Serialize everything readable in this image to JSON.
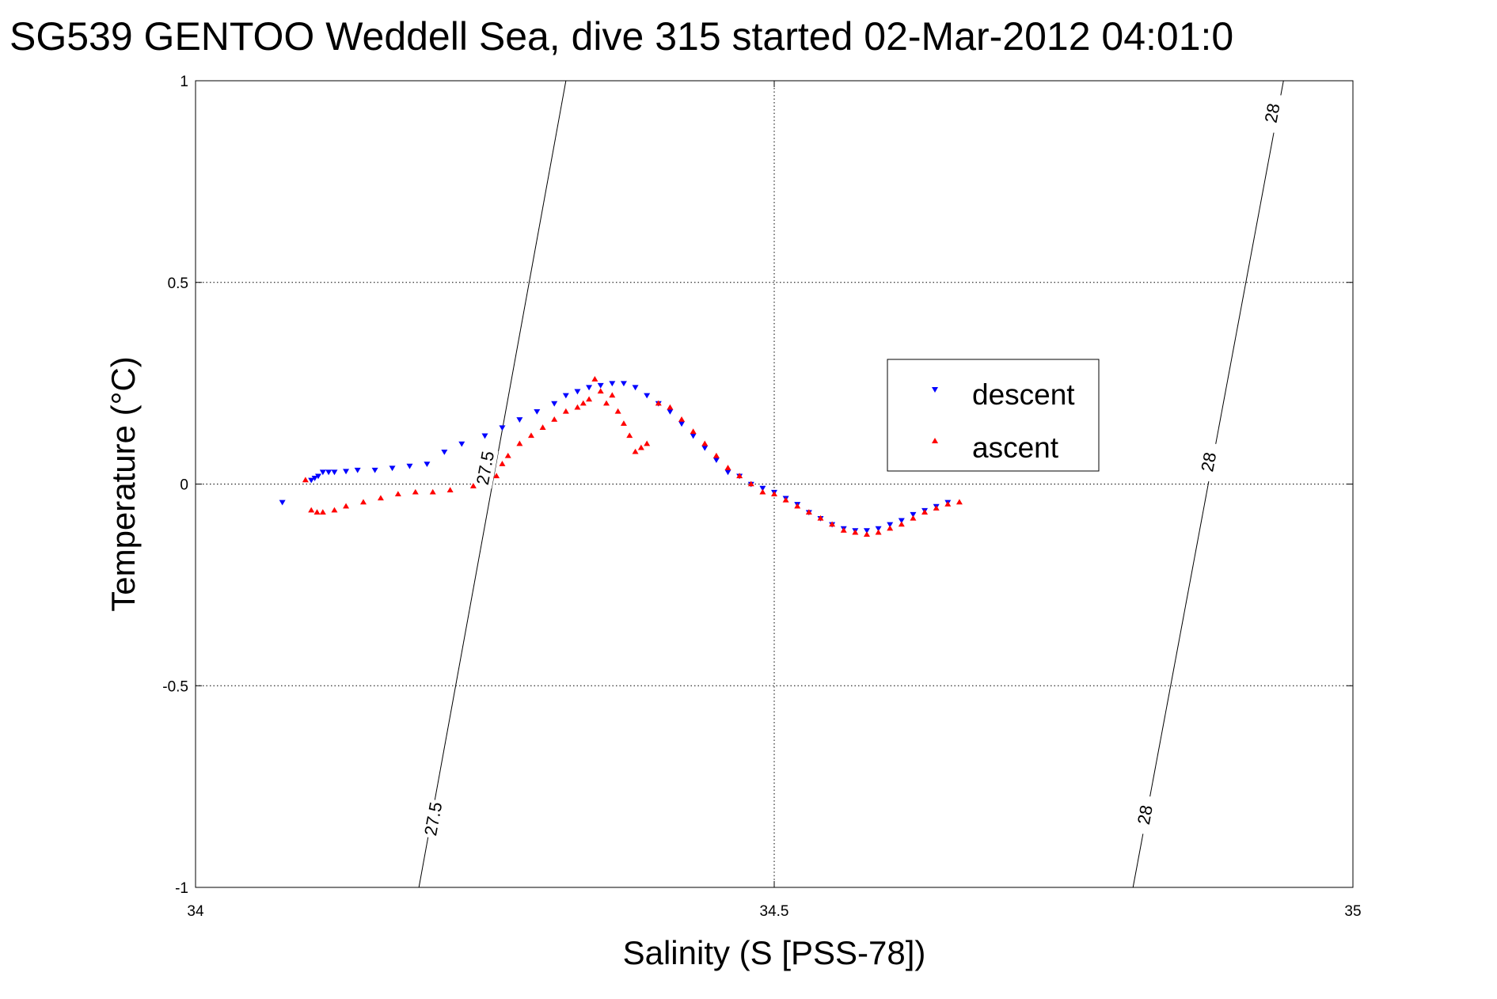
{
  "chart_data": {
    "type": "scatter",
    "title": "SG539 GENTOO Weddell Sea, dive 315 started 02-Mar-2012 04:01:0",
    "xlabel": "Salinity (S [PSS-78])",
    "ylabel": "Temperature (°C)",
    "xlim": [
      34,
      35
    ],
    "ylim": [
      -1,
      1
    ],
    "x_ticks": [
      "34",
      "34.5",
      "35"
    ],
    "y_ticks": [
      "1",
      "0.5",
      "0",
      "-0.5",
      "-1"
    ],
    "grid": true,
    "legend_position": "upper-middle-right",
    "colors": {
      "descent": "#0000ff",
      "ascent": "#ff0000",
      "contour": "#000000"
    },
    "contours": [
      {
        "level": "27.5",
        "points": [
          [
            34.193,
            -1.0
          ],
          [
            34.32,
            1.0
          ]
        ],
        "labels": [
          {
            "text": "27.5",
            "x": 34.205,
            "y": -0.83
          },
          {
            "text": "27.5",
            "x": 34.25,
            "y": 0.04
          }
        ]
      },
      {
        "level": "28",
        "points": [
          [
            34.81,
            -1.0
          ],
          [
            34.94,
            1.0
          ]
        ],
        "labels": [
          {
            "text": "28",
            "x": 34.82,
            "y": -0.82
          },
          {
            "text": "28",
            "x": 34.875,
            "y": 0.055
          },
          {
            "text": "28",
            "x": 34.93,
            "y": 0.92
          }
        ]
      }
    ],
    "series": [
      {
        "name": "descent",
        "marker": "triangle-down",
        "x": [
          34.075,
          34.1,
          34.103,
          34.106,
          34.11,
          34.115,
          34.12,
          34.13,
          34.14,
          34.155,
          34.17,
          34.185,
          34.2,
          34.215,
          34.23,
          34.25,
          34.265,
          34.28,
          34.295,
          34.31,
          34.32,
          34.33,
          34.34,
          34.35,
          34.36,
          34.37,
          34.38,
          34.39,
          34.4,
          34.41,
          34.42,
          34.43,
          34.44,
          34.45,
          34.46,
          34.47,
          34.48,
          34.49,
          34.5,
          34.51,
          34.52,
          34.53,
          34.54,
          34.55,
          34.56,
          34.57,
          34.58,
          34.59,
          34.6,
          34.61,
          34.62,
          34.63,
          34.64,
          34.65
        ],
        "y": [
          -0.045,
          0.01,
          0.015,
          0.02,
          0.03,
          0.03,
          0.03,
          0.032,
          0.035,
          0.035,
          0.04,
          0.045,
          0.05,
          0.08,
          0.1,
          0.12,
          0.14,
          0.16,
          0.18,
          0.2,
          0.22,
          0.23,
          0.24,
          0.245,
          0.25,
          0.25,
          0.24,
          0.22,
          0.2,
          0.18,
          0.15,
          0.12,
          0.09,
          0.06,
          0.03,
          0.02,
          0.0,
          -0.01,
          -0.02,
          -0.035,
          -0.05,
          -0.07,
          -0.085,
          -0.1,
          -0.11,
          -0.115,
          -0.115,
          -0.11,
          -0.1,
          -0.09,
          -0.075,
          -0.065,
          -0.055,
          -0.045
        ]
      },
      {
        "name": "ascent",
        "marker": "triangle-up",
        "x": [
          34.095,
          34.1,
          34.105,
          34.11,
          34.12,
          34.13,
          34.145,
          34.16,
          34.175,
          34.19,
          34.205,
          34.22,
          34.24,
          34.26,
          34.265,
          34.27,
          34.28,
          34.29,
          34.3,
          34.31,
          34.32,
          34.33,
          34.335,
          34.34,
          34.345,
          34.35,
          34.355,
          34.36,
          34.365,
          34.37,
          34.375,
          34.38,
          34.385,
          34.39,
          34.4,
          34.41,
          34.42,
          34.43,
          34.44,
          34.45,
          34.46,
          34.47,
          34.48,
          34.49,
          34.5,
          34.51,
          34.52,
          34.53,
          34.54,
          34.55,
          34.56,
          34.57,
          34.58,
          34.59,
          34.6,
          34.61,
          34.62,
          34.63,
          34.64,
          34.65,
          34.66
        ],
        "y": [
          0.01,
          -0.065,
          -0.07,
          -0.07,
          -0.065,
          -0.055,
          -0.045,
          -0.035,
          -0.025,
          -0.02,
          -0.02,
          -0.015,
          -0.005,
          0.02,
          0.05,
          0.07,
          0.1,
          0.12,
          0.14,
          0.16,
          0.18,
          0.19,
          0.2,
          0.21,
          0.26,
          0.23,
          0.2,
          0.22,
          0.18,
          0.15,
          0.12,
          0.08,
          0.09,
          0.1,
          0.2,
          0.19,
          0.16,
          0.13,
          0.1,
          0.07,
          0.04,
          0.02,
          0.0,
          -0.02,
          -0.025,
          -0.04,
          -0.055,
          -0.07,
          -0.085,
          -0.1,
          -0.115,
          -0.12,
          -0.125,
          -0.12,
          -0.11,
          -0.1,
          -0.085,
          -0.07,
          -0.06,
          -0.05,
          -0.045
        ]
      }
    ]
  }
}
